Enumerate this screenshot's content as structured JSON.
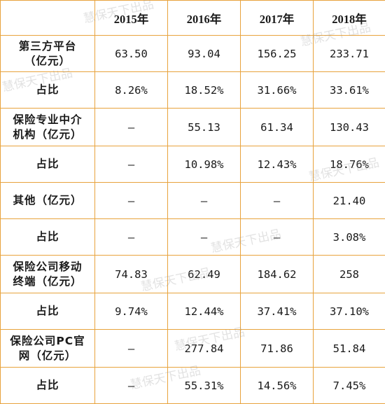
{
  "watermark": "慧保天下出品",
  "header": [
    "",
    "2015年",
    "2016年",
    "2017年",
    "2018年"
  ],
  "rows": [
    {
      "label": "第三方平台\n（亿元）",
      "cells": [
        "63.50",
        "93.04",
        "156.25",
        "233.71"
      ]
    },
    {
      "label": "占比",
      "cells": [
        "8.26%",
        "18.52%",
        "31.66%",
        "33.61%"
      ]
    },
    {
      "label": "保险专业中介\n机构（亿元）",
      "cells": [
        "—",
        "55.13",
        "61.34",
        "130.43"
      ]
    },
    {
      "label": "占比",
      "cells": [
        "—",
        "10.98%",
        "12.43%",
        "18.76%"
      ]
    },
    {
      "label": "其他（亿元）",
      "cells": [
        "—",
        "—",
        "—",
        "21.40"
      ]
    },
    {
      "label": "占比",
      "cells": [
        "—",
        "—",
        "—",
        "3.08%"
      ]
    },
    {
      "label": "保险公司移动\n终端（亿元）",
      "cells": [
        "74.83",
        "62.49",
        "184.62",
        "258"
      ]
    },
    {
      "label": "占比",
      "cells": [
        "9.74%",
        "12.44%",
        "37.41%",
        "37.10%"
      ]
    },
    {
      "label": "保险公司PC官\n网（亿元）",
      "cells": [
        "—",
        "277.84",
        "71.86",
        "51.84"
      ]
    },
    {
      "label": "占比",
      "cells": [
        "—",
        "55.31%",
        "14.56%",
        "7.45%"
      ]
    }
  ]
}
